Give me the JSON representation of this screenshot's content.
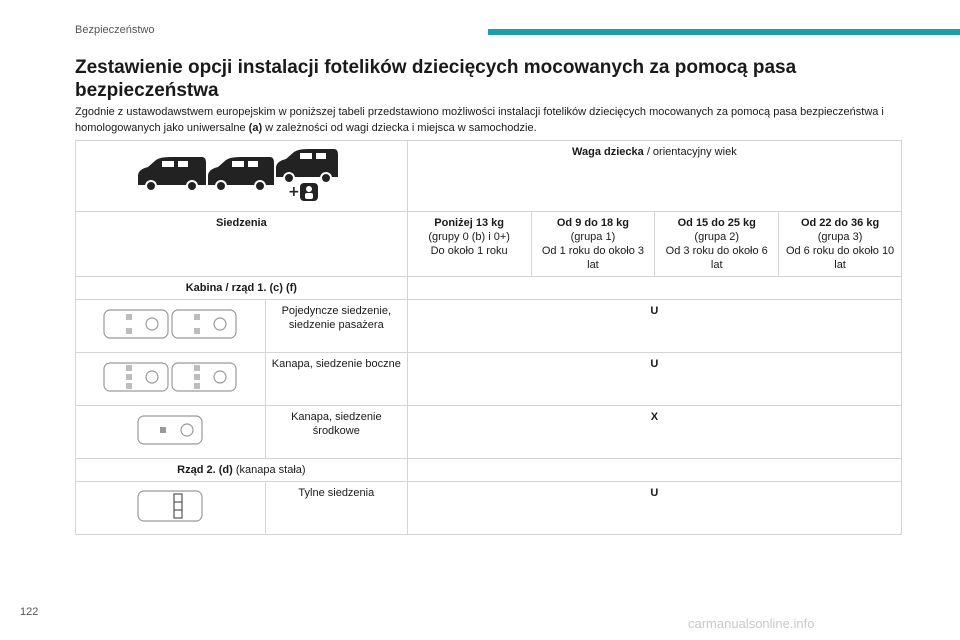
{
  "header": {
    "section": "Bezpieczeństwo"
  },
  "title": "Zestawienie opcji instalacji fotelików dziecięcych mocowanych za pomocą pasa bezpieczeństwa",
  "intro": {
    "part1": "Zgodnie z ustawodawstwem europejskim w poniższej tabeli przedstawiono możliwości instalacji fotelików dziecięcych mocowanych za pomocą pasa bezpieczeństwa i homologowanych jako uniwersalne ",
    "bold": "(a)",
    "part2": " w zależności od wagi dziecka i miejsca w samochodzie."
  },
  "table": {
    "weight_header_bold": "Waga dziecka",
    "weight_header_rest": " / orientacyjny wiek",
    "seats_label": "Siedzenia",
    "groups": [
      {
        "title": "Poniżej 13 kg",
        "lines": [
          "(grupy 0 (b) i 0+)",
          "Do około 1 roku"
        ]
      },
      {
        "title": "Od 9 do 18 kg",
        "lines": [
          "(grupa 1)",
          "Od 1 roku do około 3 lat"
        ]
      },
      {
        "title": "Od 15 do 25 kg",
        "lines": [
          "(grupa 2)",
          "Od 3 roku do około 6 lat"
        ]
      },
      {
        "title": "Od 22 do 36 kg",
        "lines": [
          "(grupa 3)",
          "Od 6 roku do około 10 lat"
        ]
      }
    ],
    "section1": {
      "bold": "Kabina / rząd 1. (c) (f)",
      "rest": ""
    },
    "section2": {
      "bold": "Rząd 2. (d)",
      "rest": " (kanapa stała)"
    },
    "rows": [
      {
        "label": "Pojedyncze siedzenie, siedzenie pasażera",
        "value": "U"
      },
      {
        "label": "Kanapa, siedzenie boczne",
        "value": "U"
      },
      {
        "label": "Kanapa, siedzenie środkowe",
        "value": "X"
      },
      {
        "label": "Tylne siedzenia",
        "value": "U"
      }
    ]
  },
  "footer": {
    "page_number": "122",
    "watermark": "carmanualsonline.info"
  },
  "colors": {
    "accent": "#1d9ea8",
    "border": "#d4d4d4",
    "text": "#1a1a1a"
  }
}
